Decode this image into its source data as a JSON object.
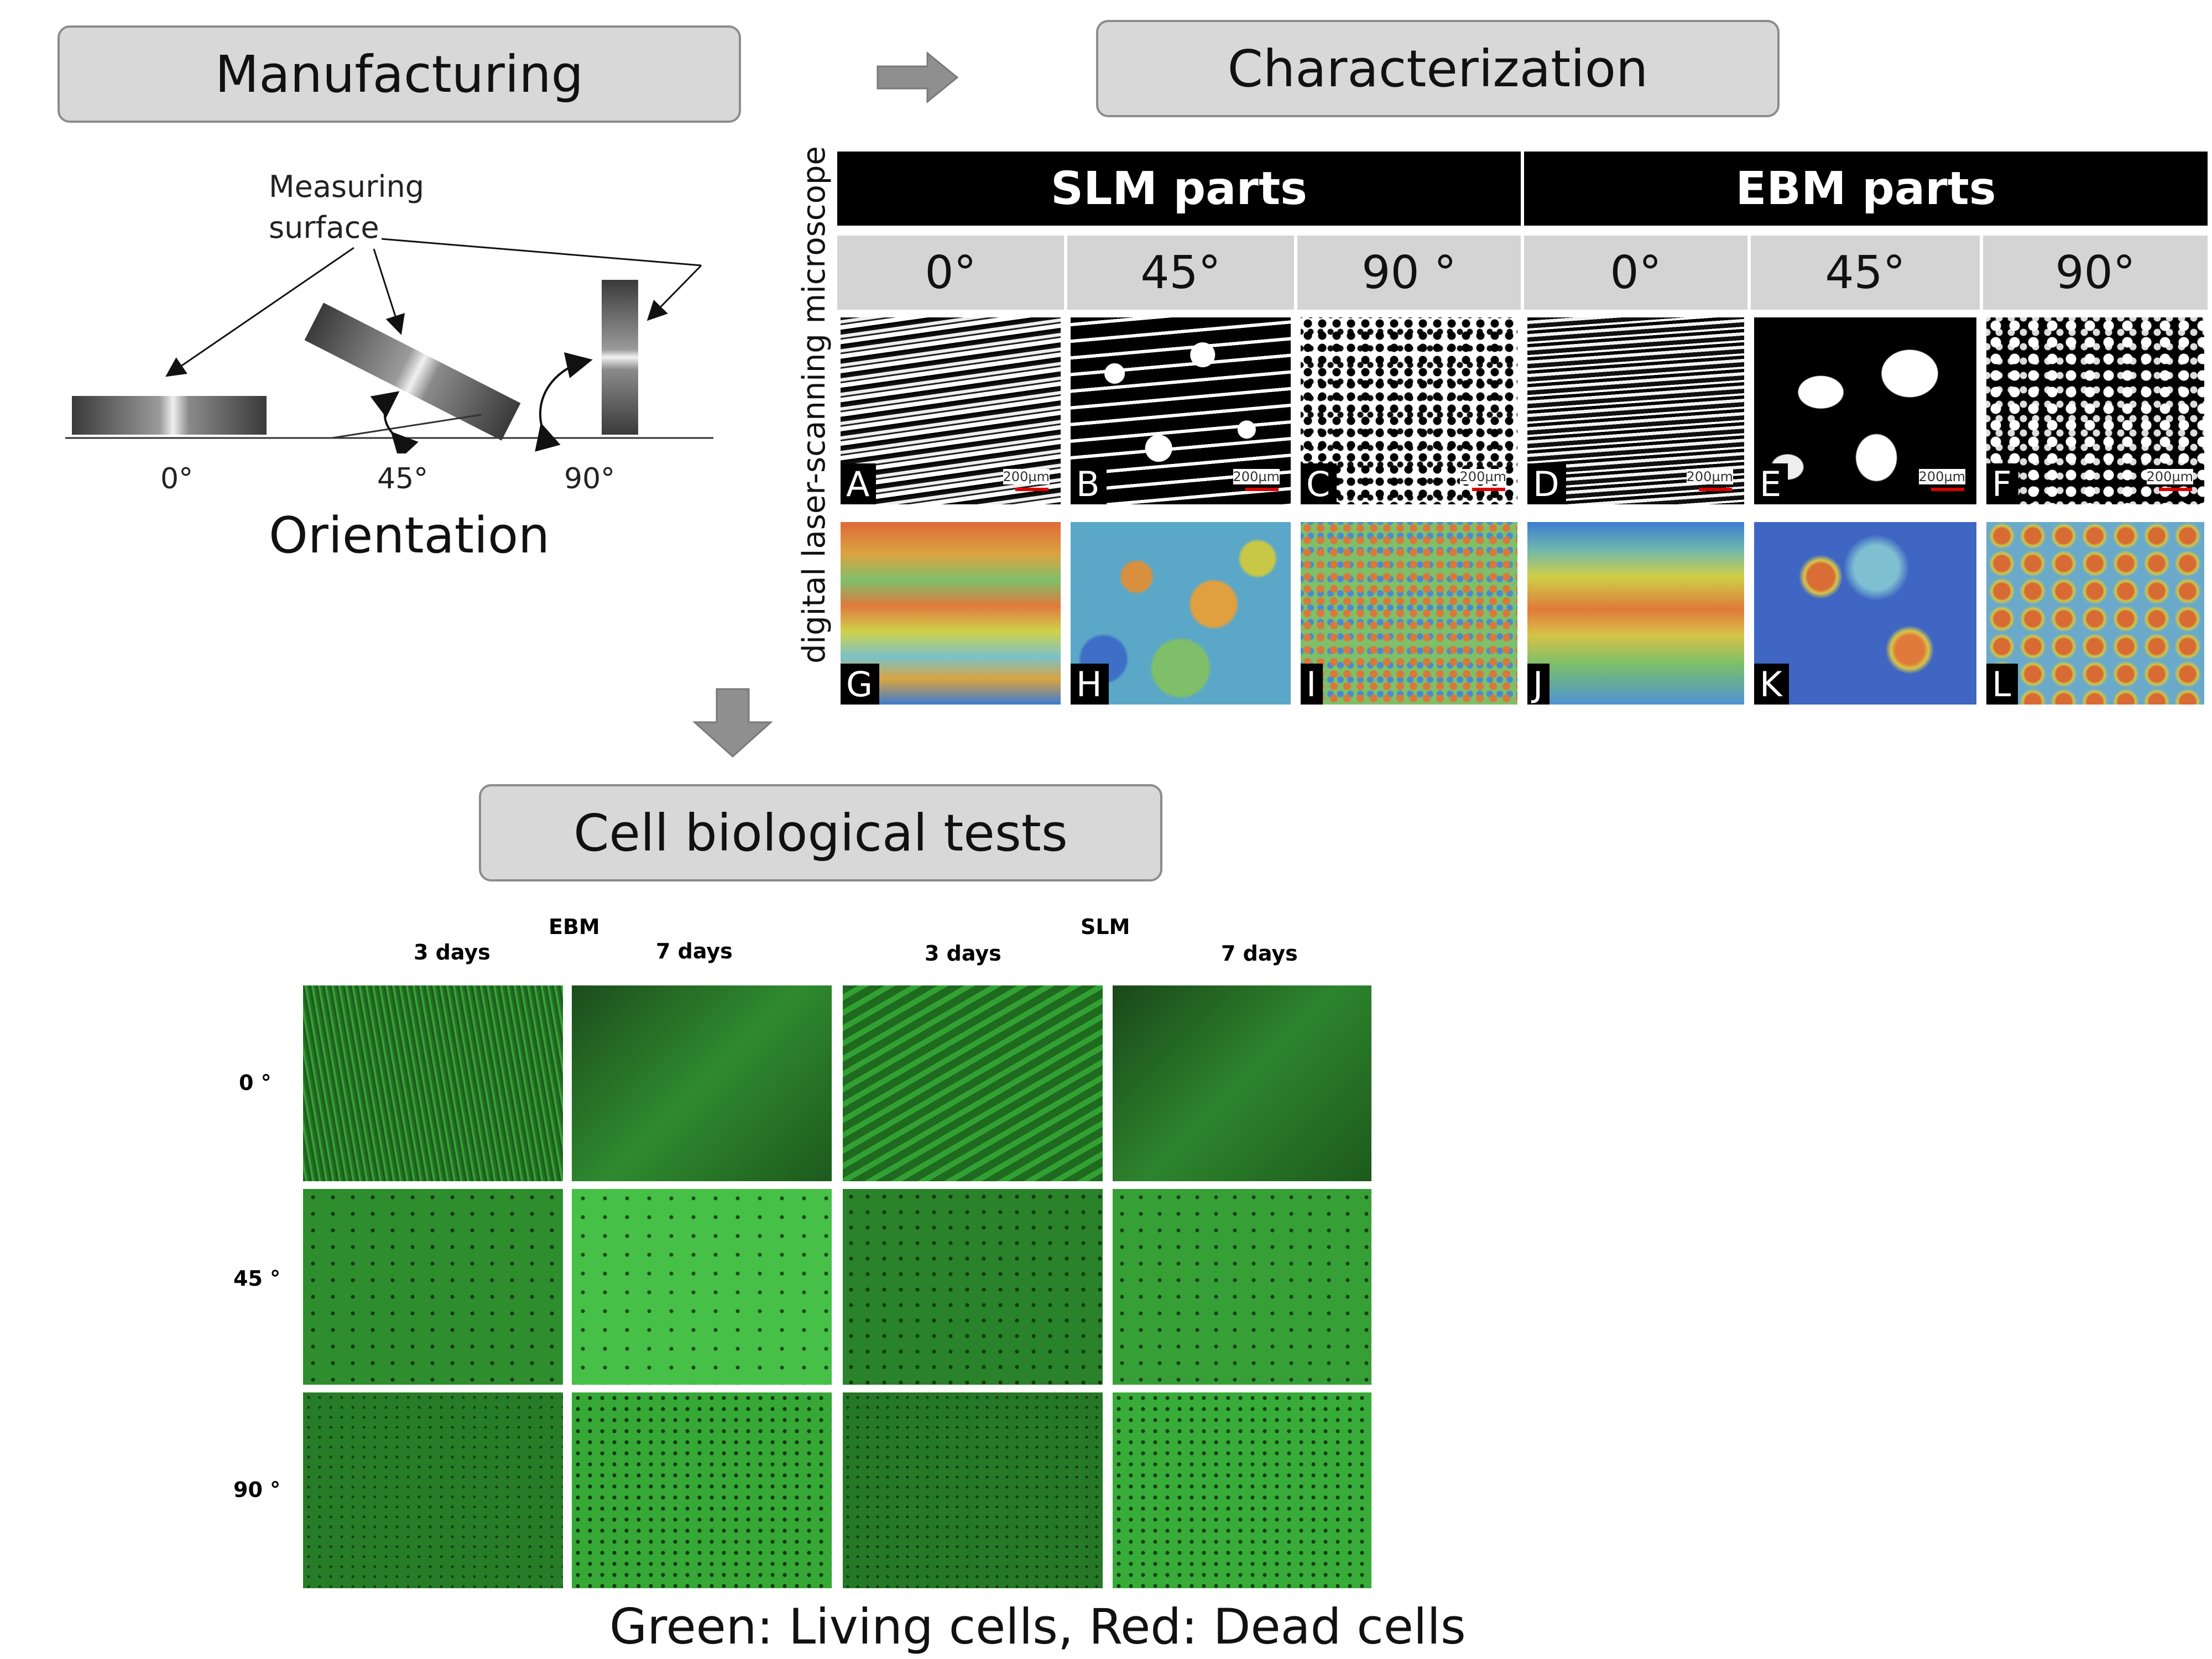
{
  "headings": {
    "manufacturing": "Manufacturing",
    "characterization": "Characterization",
    "cell_tests": "Cell biological tests"
  },
  "manufacturing": {
    "measuring_surface_line1": "Measuring",
    "measuring_surface_line2": "surface",
    "angles": [
      "0°",
      "45°",
      "90°"
    ],
    "orientation_label": "Orientation"
  },
  "characterization": {
    "vertical_label": "digital laser-scanning microscope",
    "groups": [
      "SLM parts",
      "EBM parts"
    ],
    "angles": [
      "0°",
      "45°",
      "90 °",
      "0°",
      "45°",
      "90°"
    ],
    "micro_tiles": [
      {
        "letter": "A",
        "scale": "200µm"
      },
      {
        "letter": "B",
        "scale": "200µm"
      },
      {
        "letter": "C",
        "scale": "200µm"
      },
      {
        "letter": "D",
        "scale": "200µm"
      },
      {
        "letter": "E",
        "scale": "200µm"
      },
      {
        "letter": "F",
        "scale": "200µm"
      }
    ],
    "topo_tiles": [
      {
        "letter": "G"
      },
      {
        "letter": "H"
      },
      {
        "letter": "I"
      },
      {
        "letter": "J"
      },
      {
        "letter": "K"
      },
      {
        "letter": "L"
      }
    ]
  },
  "cell_tests": {
    "groups": [
      "EBM",
      "SLM"
    ],
    "columns": [
      "3 days",
      "7 days",
      "3 days",
      "7 days"
    ],
    "rows": [
      "0 °",
      "45 °",
      "90 °"
    ],
    "caption": "Green: Living cells, Red: Dead cells"
  },
  "colors": {
    "heading_fill": "#d8d8d8",
    "heading_border": "#8c8c8c",
    "arrow": "#8f8f8f",
    "living_cells": "#2fa82f",
    "dead_cells": "#c0392b"
  }
}
